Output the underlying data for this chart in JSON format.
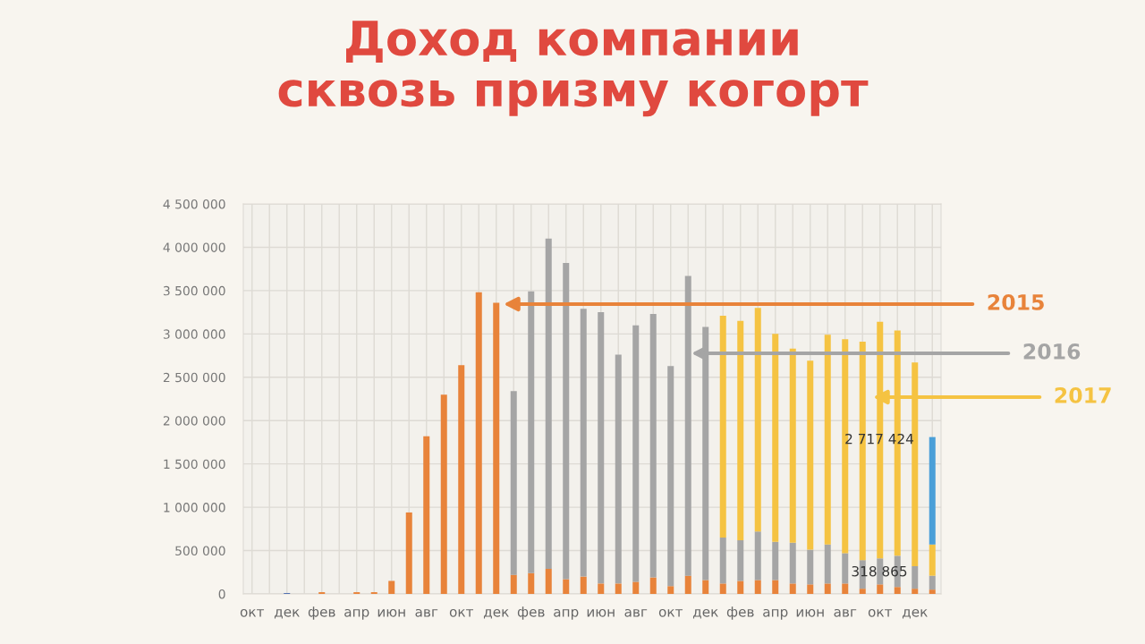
{
  "chart_data": {
    "type": "bar",
    "title": "Доход компании\nсквозь призму когорт",
    "categories": [
      "окт",
      null,
      "дек",
      null,
      "фев",
      null,
      "апр",
      null,
      "июн",
      null,
      "авг",
      null,
      "окт",
      null,
      "дек",
      null,
      "фев",
      null,
      "апр",
      null,
      "июн",
      null,
      "авг",
      null,
      "окт",
      null,
      "дек",
      null,
      "фев",
      null,
      "апр",
      null,
      "июн",
      null,
      "авг",
      null,
      "окт",
      null,
      "дек",
      null
    ],
    "stacked": true,
    "series": [
      {
        "color": "#4f6fb0",
        "values": [
          null,
          null,
          10000,
          null,
          null,
          null,
          null,
          null,
          null,
          null,
          null,
          null,
          null,
          null,
          null,
          null,
          null,
          null,
          null,
          null,
          null,
          null,
          null,
          null,
          null,
          null,
          null,
          null,
          null,
          null,
          null,
          null,
          null,
          null,
          null,
          null,
          null,
          null,
          null,
          null
        ]
      },
      {
        "name": "2015",
        "color": "#e8833a",
        "values": [
          null,
          null,
          null,
          null,
          20000,
          null,
          20000,
          20000,
          150000,
          940000,
          1820000,
          2300000,
          2640000,
          3480000,
          3360000,
          220000,
          240000,
          290000,
          170000,
          200000,
          120000,
          120000,
          140000,
          190000,
          90000,
          210000,
          160000,
          120000,
          150000,
          160000,
          160000,
          120000,
          110000,
          120000,
          120000,
          60000,
          110000,
          80000,
          60000,
          50000
        ]
      },
      {
        "name": "2016",
        "color": "#a5a5a5",
        "values": [
          null,
          null,
          null,
          null,
          null,
          null,
          null,
          null,
          null,
          null,
          null,
          null,
          null,
          null,
          null,
          2120000,
          3250000,
          3810000,
          3650000,
          3090000,
          3130000,
          2640000,
          2960000,
          3040000,
          2540000,
          3460000,
          2920000,
          530000,
          470000,
          560000,
          440000,
          470000,
          400000,
          450000,
          350000,
          330000,
          300000,
          360000,
          260000,
          160000
        ]
      },
      {
        "name": "2017",
        "color": "#f5c342",
        "values": [
          null,
          null,
          null,
          null,
          null,
          null,
          null,
          null,
          null,
          null,
          null,
          null,
          null,
          null,
          null,
          null,
          null,
          null,
          null,
          null,
          null,
          null,
          null,
          null,
          null,
          null,
          null,
          2560000,
          2530000,
          2580000,
          2400000,
          2240000,
          2180000,
          2420000,
          2470000,
          2520000,
          2730000,
          2600000,
          2350000,
          360000
        ]
      },
      {
        "color": "#4a9fd8",
        "values": [
          null,
          null,
          null,
          null,
          null,
          null,
          null,
          null,
          null,
          null,
          null,
          null,
          null,
          null,
          null,
          null,
          null,
          null,
          null,
          null,
          null,
          null,
          null,
          null,
          null,
          null,
          null,
          null,
          null,
          null,
          null,
          null,
          null,
          null,
          null,
          null,
          null,
          null,
          null,
          1240000
        ]
      }
    ],
    "ylim": [
      0,
      4500000
    ],
    "yticks": [
      0,
      {
        "value": 500000,
        "label": "500 000"
      },
      {
        "value": 1000000,
        "label": "1 000 000"
      },
      {
        "value": 1500000,
        "label": "1 500 000"
      },
      {
        "value": 2000000,
        "label": "2 000 000"
      },
      {
        "value": 2500000,
        "label": "2 500 000"
      },
      {
        "value": 3000000,
        "label": "3 000 000"
      },
      {
        "value": 3500000,
        "label": "3 500 000"
      },
      {
        "value": 4000000,
        "label": "4 000 000"
      },
      {
        "value": 4500000,
        "label": "4 500 000"
      }
    ],
    "grid": true,
    "annotations": [
      "2 717 424",
      "318 865"
    ]
  }
}
